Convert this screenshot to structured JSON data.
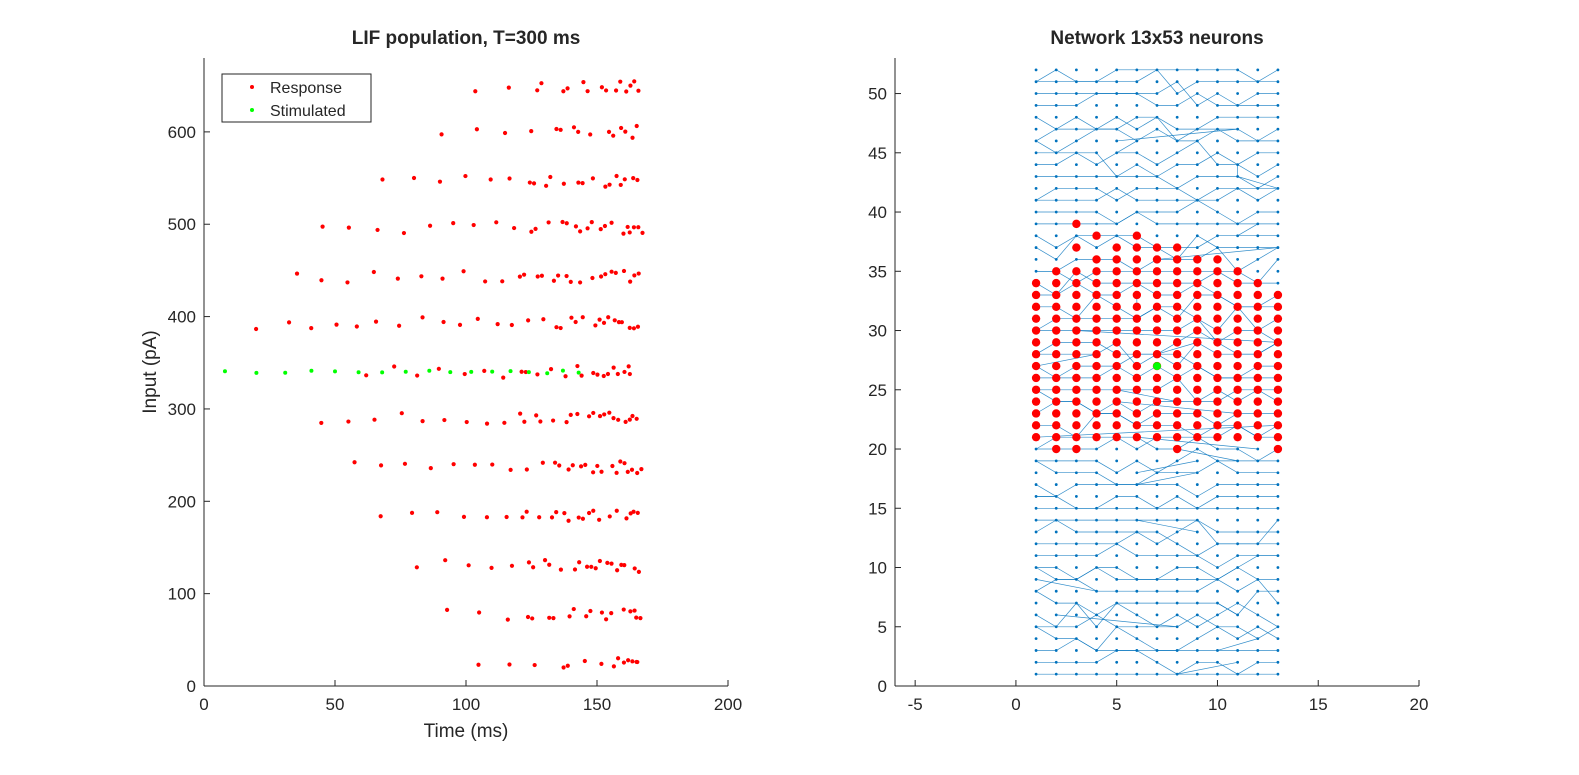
{
  "colors": {
    "response": "#ff0000",
    "stimulated": "#00ff00",
    "network": "#0072bd",
    "axis": "#262626"
  },
  "chart_data": [
    {
      "type": "scatter",
      "title": "LIF population, T=300 ms",
      "xlabel": "Time (ms)",
      "ylabel": "Input (pA)",
      "xlim": [
        0,
        200
      ],
      "ylim": [
        0,
        680
      ],
      "xticks": [
        0,
        50,
        100,
        150,
        200
      ],
      "yticks": [
        0,
        100,
        200,
        300,
        400,
        500,
        600
      ],
      "grid": false,
      "legend_position": "top-left",
      "series": [
        {
          "name": "Response",
          "color": "#ff0000",
          "note_visible": "",
          "rows": [
            {
              "y": 25,
              "spike_times": [
                105,
                116,
                126,
                137,
                145,
                152,
                156,
                160,
                163,
                165
              ]
            },
            {
              "y": 78,
              "spike_times": [
                93,
                105,
                116,
                124,
                132,
                140,
                146,
                152,
                156,
                160,
                163,
                165
              ]
            },
            {
              "y": 130,
              "spike_times": [
                81,
                92,
                101,
                110,
                117,
                124,
                130,
                136,
                141,
                146,
                150,
                154,
                158,
                161,
                164
              ]
            },
            {
              "y": 185,
              "spike_times": [
                67,
                80,
                89,
                99,
                108,
                115,
                122,
                128,
                133,
                138,
                143,
                147,
                151,
                155,
                158,
                161,
                164
              ]
            },
            {
              "y": 237,
              "spike_times": [
                57,
                67,
                77,
                86,
                95,
                103,
                110,
                117,
                123,
                129,
                134,
                139,
                144,
                148,
                152,
                156,
                159,
                162,
                165
              ]
            },
            {
              "y": 290,
              "spike_times": [
                45,
                55,
                65,
                75,
                84,
                92,
                100,
                108,
                115,
                121,
                127,
                133,
                138,
                143,
                147,
                151,
                155,
                158,
                161,
                164
              ]
            },
            {
              "y": 340,
              "spike_times": [
                62,
                72,
                81,
                90,
                99,
                107,
                114,
                121,
                127,
                133,
                138,
                143,
                148,
                152,
                156,
                160,
                163
              ]
            },
            {
              "y": 393,
              "spike_times": [
                20,
                33,
                41,
                50,
                58,
                66,
                75,
                83,
                91,
                98,
                105,
                112,
                118,
                124,
                130,
                135,
                140,
                145,
                149,
                153,
                157,
                160,
                163,
                166
              ]
            },
            {
              "y": 443,
              "spike_times": [
                35,
                45,
                55,
                65,
                74,
                83,
                91,
                99,
                107,
                114,
                121,
                127,
                133,
                138,
                143,
                148,
                152,
                156,
                160,
                163,
                166
              ]
            },
            {
              "y": 496,
              "spike_times": [
                45,
                55,
                66,
                76,
                86,
                95,
                103,
                111,
                118,
                125,
                131,
                137,
                142,
                147,
                152,
                156,
                160,
                163,
                166
              ]
            },
            {
              "y": 546,
              "spike_times": [
                68,
                80,
                90,
                100,
                109,
                117,
                124,
                131,
                137,
                143,
                148,
                153,
                157,
                161,
                164
              ]
            },
            {
              "y": 600,
              "spike_times": [
                91,
                104,
                115,
                125,
                134,
                141,
                148,
                154,
                159,
                163
              ]
            },
            {
              "y": 650,
              "spike_times": [
                104,
                116,
                127,
                137,
                145,
                152,
                157,
                161,
                164
              ]
            }
          ]
        },
        {
          "name": "Stimulated",
          "color": "#00ff00",
          "rows": [
            {
              "y": 340,
              "spike_times": [
                8,
                20,
                31,
                41,
                50,
                59,
                68,
                77,
                86,
                94,
                102,
                110,
                117,
                124,
                131,
                137,
                143
              ]
            }
          ]
        }
      ]
    },
    {
      "type": "scatter",
      "title": "Network 13x53 neurons",
      "xlabel": "",
      "ylabel": "",
      "xlim": [
        -6,
        20
      ],
      "ylim": [
        0,
        53
      ],
      "xticks": [
        -5,
        0,
        5,
        10,
        15,
        20
      ],
      "yticks": [
        0,
        5,
        10,
        15,
        20,
        25,
        30,
        35,
        40,
        45,
        50
      ],
      "grid": false,
      "grid_size": {
        "columns": 13,
        "rows": 53
      },
      "network_series": {
        "color": "#0072bd",
        "x_range": [
          1,
          13
        ],
        "y_range": [
          1,
          52
        ]
      },
      "active_region": {
        "color": "#ff0000",
        "full_rows": [
          21,
          33
        ],
        "partial_rows": [
          {
            "y": 20,
            "x": [
              2,
              3,
              8,
              13
            ]
          },
          {
            "y": 34,
            "x": [
              1,
              2,
              3,
              4,
              5,
              6,
              7,
              8,
              9,
              10,
              11,
              12
            ]
          },
          {
            "y": 35,
            "x": [
              2,
              3,
              4,
              5,
              6,
              7,
              8,
              9,
              10,
              11
            ]
          },
          {
            "y": 36,
            "x": [
              4,
              5,
              6,
              7,
              8,
              9,
              10
            ]
          },
          {
            "y": 37,
            "x": [
              3,
              5,
              6,
              7,
              8
            ]
          },
          {
            "y": 38,
            "x": [
              4,
              6
            ]
          },
          {
            "y": 39,
            "x": [
              3
            ]
          }
        ]
      },
      "stimulated_neuron": {
        "x": 7,
        "y": 27,
        "color": "#00ff00"
      }
    }
  ]
}
